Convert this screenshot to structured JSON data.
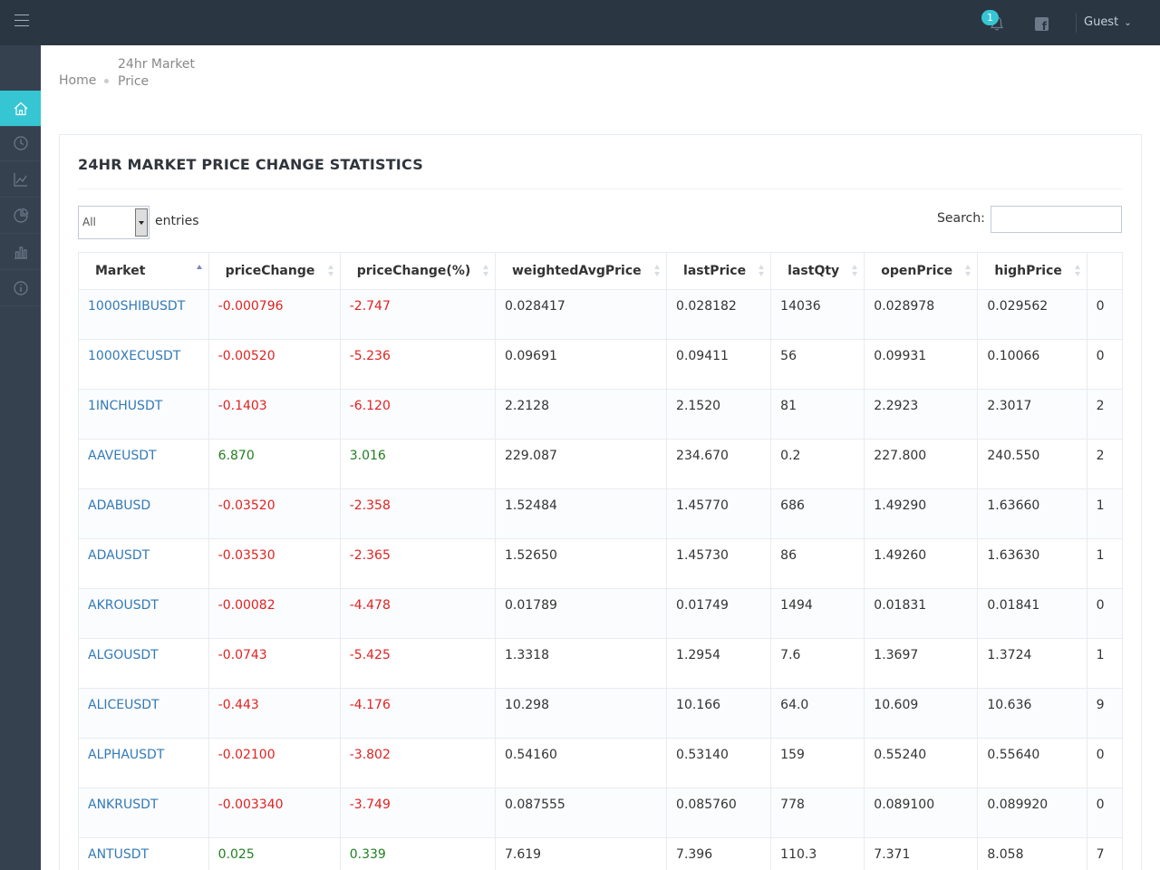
{
  "header": {
    "notification_count": "1",
    "user_label": "Guest"
  },
  "breadcrumb": {
    "home": "Home",
    "current": "24hr Market Price"
  },
  "portlet": {
    "title": "24HR MARKET PRICE CHANGE STATISTICS"
  },
  "controls": {
    "length_value": "All",
    "length_label": "entries",
    "search_label": "Search:",
    "search_value": ""
  },
  "sidebar": {
    "items": [
      "home-icon",
      "clock-icon",
      "line-chart-icon",
      "pie-chart-icon",
      "bar-chart-icon",
      "info-icon"
    ]
  },
  "colors": {
    "topbar": "#2b3643",
    "sidebar": "#364150",
    "accent": "#36c6d3",
    "negative": "#e02222",
    "positive": "#208020",
    "link": "#337ab7"
  },
  "table": {
    "columns": [
      "Market",
      "priceChange",
      "priceChange(%)",
      "weightedAvgPrice",
      "lastPrice",
      "lastQty",
      "openPrice",
      "highPrice",
      ""
    ],
    "rows": [
      {
        "market": "1000SHIBUSDT",
        "priceChange": "-0.000796",
        "pct": "-2.747",
        "wavg": "0.028417",
        "last": "0.028182",
        "qty": "14036",
        "open": "0.028978",
        "high": "0.029562",
        "extra": "0",
        "dir": "neg"
      },
      {
        "market": "1000XECUSDT",
        "priceChange": "-0.00520",
        "pct": "-5.236",
        "wavg": "0.09691",
        "last": "0.09411",
        "qty": "56",
        "open": "0.09931",
        "high": "0.10066",
        "extra": "0",
        "dir": "neg"
      },
      {
        "market": "1INCHUSDT",
        "priceChange": "-0.1403",
        "pct": "-6.120",
        "wavg": "2.2128",
        "last": "2.1520",
        "qty": "81",
        "open": "2.2923",
        "high": "2.3017",
        "extra": "2",
        "dir": "neg"
      },
      {
        "market": "AAVEUSDT",
        "priceChange": "6.870",
        "pct": "3.016",
        "wavg": "229.087",
        "last": "234.670",
        "qty": "0.2",
        "open": "227.800",
        "high": "240.550",
        "extra": "2",
        "dir": "pos"
      },
      {
        "market": "ADABUSD",
        "priceChange": "-0.03520",
        "pct": "-2.358",
        "wavg": "1.52484",
        "last": "1.45770",
        "qty": "686",
        "open": "1.49290",
        "high": "1.63660",
        "extra": "1",
        "dir": "neg"
      },
      {
        "market": "ADAUSDT",
        "priceChange": "-0.03530",
        "pct": "-2.365",
        "wavg": "1.52650",
        "last": "1.45730",
        "qty": "86",
        "open": "1.49260",
        "high": "1.63630",
        "extra": "1",
        "dir": "neg"
      },
      {
        "market": "AKROUSDT",
        "priceChange": "-0.00082",
        "pct": "-4.478",
        "wavg": "0.01789",
        "last": "0.01749",
        "qty": "1494",
        "open": "0.01831",
        "high": "0.01841",
        "extra": "0",
        "dir": "neg"
      },
      {
        "market": "ALGOUSDT",
        "priceChange": "-0.0743",
        "pct": "-5.425",
        "wavg": "1.3318",
        "last": "1.2954",
        "qty": "7.6",
        "open": "1.3697",
        "high": "1.3724",
        "extra": "1",
        "dir": "neg"
      },
      {
        "market": "ALICEUSDT",
        "priceChange": "-0.443",
        "pct": "-4.176",
        "wavg": "10.298",
        "last": "10.166",
        "qty": "64.0",
        "open": "10.609",
        "high": "10.636",
        "extra": "9",
        "dir": "neg"
      },
      {
        "market": "ALPHAUSDT",
        "priceChange": "-0.02100",
        "pct": "-3.802",
        "wavg": "0.54160",
        "last": "0.53140",
        "qty": "159",
        "open": "0.55240",
        "high": "0.55640",
        "extra": "0",
        "dir": "neg"
      },
      {
        "market": "ANKRUSDT",
        "priceChange": "-0.003340",
        "pct": "-3.749",
        "wavg": "0.087555",
        "last": "0.085760",
        "qty": "778",
        "open": "0.089100",
        "high": "0.089920",
        "extra": "0",
        "dir": "neg"
      },
      {
        "market": "ANTUSDT",
        "priceChange": "0.025",
        "pct": "0.339",
        "wavg": "7.619",
        "last": "7.396",
        "qty": "110.3",
        "open": "7.371",
        "high": "8.058",
        "extra": "7",
        "dir": "pos"
      }
    ]
  }
}
